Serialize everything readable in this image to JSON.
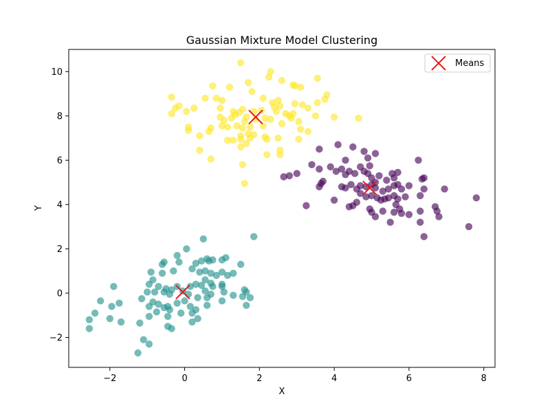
{
  "chart_data": {
    "type": "scatter",
    "title": "Gaussian Mixture Model Clustering",
    "xlabel": "X",
    "ylabel": "Y",
    "xlim": [
      -3.1,
      8.3
    ],
    "ylim": [
      -3.35,
      11.0
    ],
    "x_ticks": [
      {
        "value": -2,
        "label": "−2"
      },
      {
        "value": 0,
        "label": "0"
      },
      {
        "value": 2,
        "label": "2"
      },
      {
        "value": 4,
        "label": "4"
      },
      {
        "value": 6,
        "label": "6"
      },
      {
        "value": 8,
        "label": "8"
      }
    ],
    "y_ticks": [
      {
        "value": -2,
        "label": "−2"
      },
      {
        "value": 0,
        "label": "0"
      },
      {
        "value": 2,
        "label": "2"
      },
      {
        "value": 4,
        "label": "4"
      },
      {
        "value": 6,
        "label": "6"
      },
      {
        "value": 8,
        "label": "8"
      },
      {
        "value": 10,
        "label": "10"
      }
    ],
    "grid": false,
    "legend": {
      "placement": "top-right",
      "entries": [
        {
          "label": "Means",
          "marker": "x",
          "color": "#e31a1c"
        }
      ]
    },
    "clusters": [
      {
        "color": "#440154",
        "points": [
          [
            3.6,
            6.5
          ],
          [
            4.3,
            6.0
          ],
          [
            4.5,
            6.6
          ],
          [
            4.8,
            6.4
          ],
          [
            5.1,
            6.3
          ],
          [
            4.1,
            6.7
          ],
          [
            4.9,
            6.1
          ],
          [
            3.4,
            5.8
          ],
          [
            3.6,
            5.6
          ],
          [
            3.9,
            5.7
          ],
          [
            4.05,
            5.5
          ],
          [
            4.2,
            5.6
          ],
          [
            4.3,
            5.35
          ],
          [
            4.4,
            5.5
          ],
          [
            4.55,
            5.4
          ],
          [
            4.7,
            5.7
          ],
          [
            4.8,
            5.5
          ],
          [
            4.9,
            5.4
          ],
          [
            5.0,
            5.2
          ],
          [
            5.1,
            5.0
          ],
          [
            5.2,
            5.3
          ],
          [
            5.4,
            5.1
          ],
          [
            5.55,
            5.4
          ],
          [
            5.6,
            5.2
          ],
          [
            5.7,
            5.45
          ],
          [
            3.0,
            5.4
          ],
          [
            2.8,
            5.3
          ],
          [
            2.65,
            5.25
          ],
          [
            3.7,
            5.05
          ],
          [
            3.65,
            4.95
          ],
          [
            3.6,
            4.8
          ],
          [
            4.2,
            4.8
          ],
          [
            4.3,
            4.75
          ],
          [
            4.45,
            4.9
          ],
          [
            4.6,
            4.7
          ],
          [
            4.7,
            4.85
          ],
          [
            4.85,
            4.8
          ],
          [
            5.0,
            4.9
          ],
          [
            5.1,
            4.75
          ],
          [
            5.3,
            4.6
          ],
          [
            5.45,
            4.7
          ],
          [
            5.6,
            4.85
          ],
          [
            5.7,
            4.9
          ],
          [
            5.8,
            4.7
          ],
          [
            6.0,
            4.85
          ],
          [
            6.3,
            4.4
          ],
          [
            6.4,
            4.7
          ],
          [
            6.25,
            6.0
          ],
          [
            6.35,
            5.15
          ],
          [
            6.4,
            5.2
          ],
          [
            4.6,
            4.1
          ],
          [
            4.7,
            4.5
          ],
          [
            4.85,
            4.35
          ],
          [
            5.0,
            4.4
          ],
          [
            5.15,
            4.3
          ],
          [
            5.25,
            4.2
          ],
          [
            5.35,
            4.25
          ],
          [
            5.45,
            4.3
          ],
          [
            5.6,
            4.4
          ],
          [
            5.7,
            4.25
          ],
          [
            5.9,
            4.35
          ],
          [
            4.0,
            4.2
          ],
          [
            3.25,
            3.95
          ],
          [
            4.4,
            3.9
          ],
          [
            4.5,
            3.95
          ],
          [
            4.95,
            3.8
          ],
          [
            5.0,
            3.65
          ],
          [
            5.1,
            3.45
          ],
          [
            5.3,
            3.7
          ],
          [
            5.5,
            3.2
          ],
          [
            5.6,
            3.65
          ],
          [
            5.65,
            4.0
          ],
          [
            5.75,
            3.8
          ],
          [
            5.8,
            3.6
          ],
          [
            6.0,
            3.55
          ],
          [
            6.3,
            3.7
          ],
          [
            6.3,
            3.2
          ],
          [
            6.7,
            3.9
          ],
          [
            6.75,
            3.7
          ],
          [
            6.8,
            3.45
          ],
          [
            6.95,
            4.7
          ],
          [
            7.6,
            3.0
          ],
          [
            7.8,
            4.3
          ],
          [
            6.4,
            2.55
          ],
          [
            4.95,
            5.75
          ]
        ]
      },
      {
        "color": "#21918c",
        "points": [
          [
            1.85,
            2.55
          ],
          [
            0.5,
            2.45
          ],
          [
            0.05,
            2.0
          ],
          [
            -0.2,
            1.7
          ],
          [
            -0.55,
            1.4
          ],
          [
            -0.6,
            1.3
          ],
          [
            -0.15,
            1.4
          ],
          [
            0.3,
            1.35
          ],
          [
            0.45,
            1.45
          ],
          [
            0.6,
            1.55
          ],
          [
            0.65,
            1.45
          ],
          [
            0.75,
            1.5
          ],
          [
            1.0,
            1.5
          ],
          [
            1.1,
            1.6
          ],
          [
            1.5,
            1.3
          ],
          [
            -0.3,
            1.0
          ],
          [
            0.2,
            1.1
          ],
          [
            0.4,
            0.95
          ],
          [
            0.55,
            1.0
          ],
          [
            0.7,
            0.9
          ],
          [
            0.85,
            0.8
          ],
          [
            1.0,
            0.95
          ],
          [
            1.15,
            0.8
          ],
          [
            1.3,
            0.9
          ],
          [
            -0.9,
            0.95
          ],
          [
            -0.6,
            0.9
          ],
          [
            -0.85,
            0.6
          ],
          [
            -0.95,
            0.4
          ],
          [
            -0.7,
            0.3
          ],
          [
            -0.5,
            0.2
          ],
          [
            -0.35,
            0.15
          ],
          [
            -0.2,
            0.3
          ],
          [
            0.15,
            0.3
          ],
          [
            0.3,
            0.4
          ],
          [
            0.45,
            0.35
          ],
          [
            0.55,
            0.6
          ],
          [
            0.7,
            0.45
          ],
          [
            0.75,
            0.3
          ],
          [
            1.0,
            0.4
          ],
          [
            1.0,
            0.3
          ],
          [
            -1.9,
            0.3
          ],
          [
            -1.0,
            0.05
          ],
          [
            -0.8,
            0.05
          ],
          [
            -0.55,
            0.05
          ],
          [
            -0.4,
            -0.05
          ],
          [
            -0.05,
            0.1
          ],
          [
            0.1,
            -0.05
          ],
          [
            0.35,
            -0.2
          ],
          [
            0.55,
            0.1
          ],
          [
            0.7,
            -0.05
          ],
          [
            1.0,
            -0.35
          ],
          [
            1.05,
            0.05
          ],
          [
            1.3,
            -0.1
          ],
          [
            1.55,
            -0.15
          ],
          [
            1.6,
            0.15
          ],
          [
            1.65,
            0.05
          ],
          [
            1.75,
            -0.2
          ],
          [
            -1.15,
            -0.25
          ],
          [
            -0.85,
            -0.4
          ],
          [
            -0.7,
            -0.5
          ],
          [
            -0.45,
            -0.6
          ],
          [
            -0.2,
            -0.45
          ],
          [
            0.0,
            -0.35
          ],
          [
            0.15,
            -0.6
          ],
          [
            0.3,
            -0.75
          ],
          [
            0.6,
            -0.55
          ],
          [
            -2.25,
            -0.35
          ],
          [
            -1.75,
            -0.45
          ],
          [
            -1.95,
            -0.6
          ],
          [
            -0.95,
            -0.6
          ],
          [
            -0.75,
            -0.85
          ],
          [
            -0.55,
            -0.65
          ],
          [
            -0.4,
            -0.75
          ],
          [
            -0.1,
            -0.9
          ],
          [
            0.2,
            -0.9
          ],
          [
            0.35,
            -1.15
          ],
          [
            0.2,
            -1.3
          ],
          [
            -0.45,
            -1.05
          ],
          [
            -0.95,
            -1.05
          ],
          [
            -2.4,
            -0.9
          ],
          [
            -2.0,
            -1.15
          ],
          [
            -1.7,
            -1.3
          ],
          [
            -1.2,
            -1.35
          ],
          [
            -0.45,
            -1.5
          ],
          [
            -0.35,
            -1.6
          ],
          [
            -2.55,
            -1.2
          ],
          [
            -2.55,
            -1.6
          ],
          [
            -1.1,
            -2.1
          ],
          [
            -0.95,
            -2.3
          ],
          [
            -1.25,
            -2.7
          ],
          [
            1.65,
            -0.55
          ],
          [
            0.6,
            -0.2
          ]
        ]
      },
      {
        "color": "#fde725",
        "points": [
          [
            1.5,
            10.4
          ],
          [
            2.3,
            10.0
          ],
          [
            2.25,
            9.75
          ],
          [
            2.6,
            9.6
          ],
          [
            3.55,
            9.7
          ],
          [
            0.75,
            9.35
          ],
          [
            1.2,
            9.3
          ],
          [
            1.7,
            9.5
          ],
          [
            2.9,
            9.4
          ],
          [
            2.95,
            9.35
          ],
          [
            3.1,
            9.3
          ],
          [
            -0.35,
            8.85
          ],
          [
            0.55,
            8.8
          ],
          [
            0.85,
            8.8
          ],
          [
            1.0,
            8.7
          ],
          [
            1.8,
            9.1
          ],
          [
            2.1,
            8.8
          ],
          [
            2.5,
            8.7
          ],
          [
            2.95,
            8.55
          ],
          [
            3.15,
            8.5
          ],
          [
            3.55,
            8.6
          ],
          [
            3.75,
            8.75
          ],
          [
            3.8,
            8.95
          ],
          [
            2.35,
            8.6
          ],
          [
            -0.25,
            8.35
          ],
          [
            -0.35,
            8.1
          ],
          [
            -0.15,
            8.45
          ],
          [
            0.05,
            8.2
          ],
          [
            0.1,
            7.5
          ],
          [
            0.25,
            8.35
          ],
          [
            0.95,
            8.35
          ],
          [
            1.3,
            8.2
          ],
          [
            1.45,
            8.15
          ],
          [
            1.55,
            8.3
          ],
          [
            1.85,
            8.2
          ],
          [
            2.05,
            8.25
          ],
          [
            2.4,
            8.4
          ],
          [
            2.45,
            8.2
          ],
          [
            2.55,
            8.45
          ],
          [
            2.7,
            8.1
          ],
          [
            2.8,
            8.0
          ],
          [
            2.85,
            7.9
          ],
          [
            2.9,
            8.1
          ],
          [
            3.05,
            7.75
          ],
          [
            3.3,
            8.35
          ],
          [
            3.5,
            8.0
          ],
          [
            4.0,
            7.95
          ],
          [
            4.65,
            7.9
          ],
          [
            0.95,
            7.95
          ],
          [
            1.05,
            7.8
          ],
          [
            1.25,
            7.9
          ],
          [
            1.6,
            7.75
          ],
          [
            1.65,
            7.95
          ],
          [
            1.9,
            7.85
          ],
          [
            2.15,
            7.9
          ],
          [
            2.3,
            7.85
          ],
          [
            2.6,
            7.65
          ],
          [
            0.1,
            7.35
          ],
          [
            0.65,
            7.3
          ],
          [
            0.7,
            7.45
          ],
          [
            1.0,
            7.55
          ],
          [
            1.15,
            7.5
          ],
          [
            1.4,
            7.55
          ],
          [
            1.55,
            7.45
          ],
          [
            1.75,
            7.5
          ],
          [
            3.1,
            7.4
          ],
          [
            3.3,
            7.3
          ],
          [
            1.5,
            7.1
          ],
          [
            1.7,
            7.2
          ],
          [
            2.15,
            7.05
          ],
          [
            2.2,
            6.95
          ],
          [
            2.5,
            7.0
          ],
          [
            3.05,
            6.95
          ],
          [
            0.4,
            7.1
          ],
          [
            1.15,
            6.9
          ],
          [
            1.3,
            6.9
          ],
          [
            1.5,
            6.95
          ],
          [
            1.65,
            6.75
          ],
          [
            1.75,
            7.0
          ],
          [
            1.85,
            7.15
          ],
          [
            2.55,
            6.45
          ],
          [
            2.55,
            6.25
          ],
          [
            2.2,
            6.25
          ],
          [
            1.5,
            6.6
          ],
          [
            0.4,
            6.45
          ],
          [
            0.7,
            6.05
          ],
          [
            1.55,
            5.8
          ],
          [
            1.6,
            4.95
          ],
          [
            2.1,
            7.55
          ],
          [
            1.35,
            8.05
          ]
        ]
      }
    ],
    "means": [
      {
        "x": 4.95,
        "y": 4.75
      },
      {
        "x": -0.05,
        "y": 0.05
      },
      {
        "x": 1.9,
        "y": 7.95
      }
    ]
  }
}
